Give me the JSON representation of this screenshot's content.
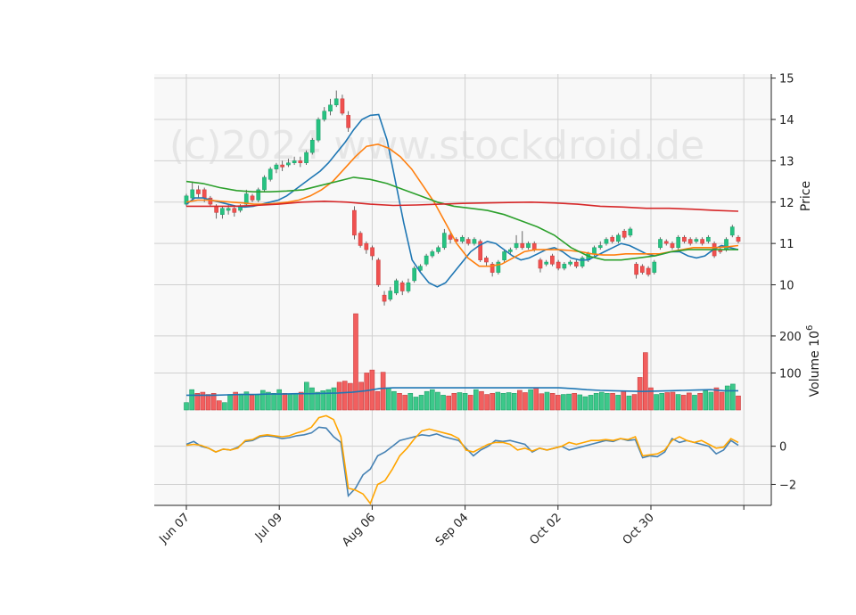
{
  "watermark": "(c)2024 www.stockdroid.de",
  "chart_data": {
    "type": "candlestick",
    "x_tick_labels": [
      "Jun 07",
      "Jul 09",
      "Aug 06",
      "Sep 04",
      "Oct 02",
      "Oct 30"
    ],
    "price_panel": {
      "ylabel": "Price",
      "yticks": [
        10,
        11,
        12,
        13,
        14,
        15
      ],
      "ylim": [
        9.3,
        15.1
      ],
      "candles": [
        {
          "o": 11.95,
          "c": 12.15,
          "h": 12.2,
          "l": 11.9
        },
        {
          "o": 12.1,
          "c": 12.3,
          "h": 12.5,
          "l": 12.05
        },
        {
          "o": 12.3,
          "c": 12.2,
          "h": 12.4,
          "l": 12.1
        },
        {
          "o": 12.3,
          "c": 12.1,
          "h": 12.35,
          "l": 12.0
        },
        {
          "o": 12.1,
          "c": 11.95,
          "h": 12.15,
          "l": 11.9
        },
        {
          "o": 11.9,
          "c": 11.75,
          "h": 11.95,
          "l": 11.6
        },
        {
          "o": 11.7,
          "c": 11.85,
          "h": 11.9,
          "l": 11.6
        },
        {
          "o": 11.8,
          "c": 11.85,
          "h": 11.95,
          "l": 11.7
        },
        {
          "o": 11.85,
          "c": 11.75,
          "h": 11.9,
          "l": 11.65
        },
        {
          "o": 11.8,
          "c": 11.9,
          "h": 11.95,
          "l": 11.75
        },
        {
          "o": 11.95,
          "c": 12.2,
          "h": 12.3,
          "l": 11.9
        },
        {
          "o": 12.15,
          "c": 12.05,
          "h": 12.2,
          "l": 12.0
        },
        {
          "o": 12.05,
          "c": 12.3,
          "h": 12.35,
          "l": 12.0
        },
        {
          "o": 12.3,
          "c": 12.6,
          "h": 12.65,
          "l": 12.25
        },
        {
          "o": 12.55,
          "c": 12.8,
          "h": 12.85,
          "l": 12.5
        },
        {
          "o": 12.8,
          "c": 12.9,
          "h": 12.95,
          "l": 12.7
        },
        {
          "o": 12.9,
          "c": 12.85,
          "h": 13.0,
          "l": 12.75
        },
        {
          "o": 12.9,
          "c": 12.95,
          "h": 13.05,
          "l": 12.85
        },
        {
          "o": 12.95,
          "c": 13.0,
          "h": 13.1,
          "l": 12.9
        },
        {
          "o": 13.0,
          "c": 12.95,
          "h": 13.1,
          "l": 12.85
        },
        {
          "o": 12.95,
          "c": 13.2,
          "h": 13.25,
          "l": 12.9
        },
        {
          "o": 13.2,
          "c": 13.5,
          "h": 13.55,
          "l": 13.15
        },
        {
          "o": 13.5,
          "c": 14.0,
          "h": 14.05,
          "l": 13.45
        },
        {
          "o": 14.0,
          "c": 14.2,
          "h": 14.3,
          "l": 13.95
        },
        {
          "o": 14.2,
          "c": 14.35,
          "h": 14.5,
          "l": 14.1
        },
        {
          "o": 14.35,
          "c": 14.5,
          "h": 14.7,
          "l": 14.3
        },
        {
          "o": 14.5,
          "c": 14.15,
          "h": 14.6,
          "l": 14.1
        },
        {
          "o": 14.1,
          "c": 13.8,
          "h": 14.2,
          "l": 13.7
        },
        {
          "o": 11.8,
          "c": 11.2,
          "h": 11.9,
          "l": 11.1
        },
        {
          "o": 11.25,
          "c": 10.95,
          "h": 11.3,
          "l": 10.9
        },
        {
          "o": 11.0,
          "c": 10.85,
          "h": 11.05,
          "l": 10.75
        },
        {
          "o": 10.9,
          "c": 10.7,
          "h": 10.95,
          "l": 10.6
        },
        {
          "o": 10.6,
          "c": 10.0,
          "h": 10.65,
          "l": 9.95
        },
        {
          "o": 9.75,
          "c": 9.6,
          "h": 9.85,
          "l": 9.5
        },
        {
          "o": 9.65,
          "c": 9.85,
          "h": 9.95,
          "l": 9.6
        },
        {
          "o": 9.8,
          "c": 10.1,
          "h": 10.15,
          "l": 9.75
        },
        {
          "o": 10.05,
          "c": 9.85,
          "h": 10.1,
          "l": 9.75
        },
        {
          "o": 9.85,
          "c": 10.05,
          "h": 10.15,
          "l": 9.8
        },
        {
          "o": 10.1,
          "c": 10.4,
          "h": 10.45,
          "l": 10.05
        },
        {
          "o": 10.35,
          "c": 10.45,
          "h": 10.5,
          "l": 10.3
        },
        {
          "o": 10.5,
          "c": 10.7,
          "h": 10.75,
          "l": 10.45
        },
        {
          "o": 10.7,
          "c": 10.8,
          "h": 10.85,
          "l": 10.65
        },
        {
          "o": 10.8,
          "c": 10.9,
          "h": 10.95,
          "l": 10.75
        },
        {
          "o": 10.9,
          "c": 11.25,
          "h": 11.35,
          "l": 10.85
        },
        {
          "o": 11.2,
          "c": 11.1,
          "h": 11.25,
          "l": 11.0
        },
        {
          "o": 11.1,
          "c": 11.05,
          "h": 11.15,
          "l": 11.0
        },
        {
          "o": 11.05,
          "c": 11.15,
          "h": 11.2,
          "l": 11.0
        },
        {
          "o": 11.1,
          "c": 11.0,
          "h": 11.15,
          "l": 10.95
        },
        {
          "o": 11.0,
          "c": 11.1,
          "h": 11.15,
          "l": 10.95
        },
        {
          "o": 11.05,
          "c": 10.6,
          "h": 11.1,
          "l": 10.55
        },
        {
          "o": 10.65,
          "c": 10.55,
          "h": 10.7,
          "l": 10.45
        },
        {
          "o": 10.5,
          "c": 10.3,
          "h": 10.55,
          "l": 10.2
        },
        {
          "o": 10.3,
          "c": 10.55,
          "h": 10.6,
          "l": 10.25
        },
        {
          "o": 10.6,
          "c": 10.8,
          "h": 10.85,
          "l": 10.55
        },
        {
          "o": 10.8,
          "c": 10.85,
          "h": 10.9,
          "l": 10.75
        },
        {
          "o": 10.9,
          "c": 11.0,
          "h": 11.2,
          "l": 10.85
        },
        {
          "o": 11.0,
          "c": 10.9,
          "h": 11.3,
          "l": 10.85
        },
        {
          "o": 10.9,
          "c": 11.0,
          "h": 11.05,
          "l": 10.85
        },
        {
          "o": 11.0,
          "c": 10.85,
          "h": 11.05,
          "l": 10.8
        },
        {
          "o": 10.6,
          "c": 10.4,
          "h": 10.65,
          "l": 10.3
        },
        {
          "o": 10.5,
          "c": 10.55,
          "h": 10.6,
          "l": 10.45
        },
        {
          "o": 10.7,
          "c": 10.5,
          "h": 10.75,
          "l": 10.45
        },
        {
          "o": 10.55,
          "c": 10.4,
          "h": 10.6,
          "l": 10.35
        },
        {
          "o": 10.4,
          "c": 10.5,
          "h": 10.55,
          "l": 10.35
        },
        {
          "o": 10.5,
          "c": 10.55,
          "h": 10.6,
          "l": 10.45
        },
        {
          "o": 10.55,
          "c": 10.45,
          "h": 10.6,
          "l": 10.4
        },
        {
          "o": 10.45,
          "c": 10.65,
          "h": 10.7,
          "l": 10.4
        },
        {
          "o": 10.6,
          "c": 10.75,
          "h": 10.8,
          "l": 10.55
        },
        {
          "o": 10.75,
          "c": 10.9,
          "h": 10.95,
          "l": 10.7
        },
        {
          "o": 10.9,
          "c": 10.95,
          "h": 11.05,
          "l": 10.85
        },
        {
          "o": 11.0,
          "c": 11.1,
          "h": 11.15,
          "l": 10.95
        },
        {
          "o": 11.15,
          "c": 11.05,
          "h": 11.2,
          "l": 11.0
        },
        {
          "o": 11.05,
          "c": 11.2,
          "h": 11.25,
          "l": 11.0
        },
        {
          "o": 11.3,
          "c": 11.15,
          "h": 11.35,
          "l": 11.1
        },
        {
          "o": 11.2,
          "c": 11.35,
          "h": 11.4,
          "l": 11.15
        },
        {
          "o": 10.5,
          "c": 10.25,
          "h": 10.55,
          "l": 10.15
        },
        {
          "o": 10.45,
          "c": 10.3,
          "h": 10.5,
          "l": 10.25
        },
        {
          "o": 10.4,
          "c": 10.25,
          "h": 10.45,
          "l": 10.2
        },
        {
          "o": 10.3,
          "c": 10.55,
          "h": 10.6,
          "l": 10.25
        },
        {
          "o": 10.9,
          "c": 11.1,
          "h": 11.15,
          "l": 10.85
        },
        {
          "o": 11.05,
          "c": 11.0,
          "h": 11.1,
          "l": 10.95
        },
        {
          "o": 11.0,
          "c": 10.9,
          "h": 11.05,
          "l": 10.85
        },
        {
          "o": 10.9,
          "c": 11.15,
          "h": 11.2,
          "l": 10.85
        },
        {
          "o": 11.15,
          "c": 11.05,
          "h": 11.2,
          "l": 11.0
        },
        {
          "o": 11.1,
          "c": 11.0,
          "h": 11.15,
          "l": 10.95
        },
        {
          "o": 11.05,
          "c": 11.1,
          "h": 11.15,
          "l": 11.0
        },
        {
          "o": 11.1,
          "c": 11.0,
          "h": 11.15,
          "l": 10.95
        },
        {
          "o": 11.05,
          "c": 11.15,
          "h": 11.2,
          "l": 11.0
        },
        {
          "o": 11.0,
          "c": 10.7,
          "h": 11.05,
          "l": 10.65
        },
        {
          "o": 10.85,
          "c": 10.8,
          "h": 10.9,
          "l": 10.75
        },
        {
          "o": 10.85,
          "c": 11.1,
          "h": 11.15,
          "l": 10.8
        },
        {
          "o": 11.2,
          "c": 11.4,
          "h": 11.45,
          "l": 11.15
        },
        {
          "o": 11.15,
          "c": 11.05,
          "h": 11.2,
          "l": 11.0
        }
      ],
      "lines": [
        {
          "color": "#1f77b4",
          "values": [
            11.95,
            12.1,
            12.1,
            12.05,
            12.0,
            11.95,
            11.9,
            11.88,
            11.9,
            11.95,
            12.0,
            12.05,
            12.15,
            12.3,
            12.45,
            12.6,
            12.75,
            12.95,
            13.2,
            13.45,
            13.75,
            14.0,
            14.1,
            14.12,
            13.5,
            12.5,
            11.5,
            10.6,
            10.3,
            10.05,
            9.95,
            10.05,
            10.3,
            10.55,
            10.8,
            10.95,
            11.05,
            11.0,
            10.85,
            10.7,
            10.6,
            10.65,
            10.75,
            10.85,
            10.9,
            10.8,
            10.65,
            10.6,
            10.6,
            10.7,
            10.8,
            10.9,
            11.0,
            10.95,
            10.85,
            10.75,
            10.7,
            10.75,
            10.8,
            10.8,
            10.7,
            10.65,
            10.7,
            10.85,
            10.95,
            10.9,
            10.85
          ]
        },
        {
          "color": "#ff7f0e",
          "values": [
            12.0,
            12.05,
            12.05,
            12.02,
            12.0,
            11.98,
            11.95,
            11.95,
            11.97,
            12.0,
            12.05,
            12.15,
            12.3,
            12.5,
            12.8,
            13.1,
            13.35,
            13.4,
            13.3,
            13.1,
            12.8,
            12.4,
            12.0,
            11.5,
            11.0,
            10.65,
            10.45,
            10.45,
            10.5,
            10.65,
            10.8,
            10.85,
            10.85,
            10.85,
            10.83,
            10.8,
            10.75,
            10.72,
            10.72,
            10.75,
            10.75,
            10.75,
            10.75,
            10.8,
            10.85,
            10.9,
            10.9,
            10.9,
            10.92,
            10.95
          ]
        },
        {
          "color": "#2ca02c",
          "values": [
            12.5,
            12.45,
            12.35,
            12.28,
            12.25,
            12.25,
            12.27,
            12.3,
            12.4,
            12.5,
            12.6,
            12.55,
            12.45,
            12.3,
            12.15,
            12.0,
            11.9,
            11.85,
            11.8,
            11.7,
            11.55,
            11.4,
            11.2,
            10.9,
            10.7,
            10.6,
            10.6,
            10.65,
            10.7,
            10.8,
            10.85,
            10.85,
            10.85,
            10.85
          ]
        },
        {
          "color": "#d62728",
          "values": [
            11.9,
            11.9,
            11.9,
            11.92,
            11.95,
            12.0,
            12.02,
            12.0,
            11.95,
            11.92,
            11.93,
            11.95,
            11.97,
            11.98,
            11.99,
            12.0,
            11.98,
            11.95,
            11.9,
            11.88,
            11.85,
            11.85,
            11.83,
            11.8,
            11.78
          ]
        }
      ]
    },
    "volume_panel": {
      "ylabel": "Volume  10^6",
      "yticks": [
        100,
        200
      ],
      "ylim": [
        0,
        260
      ],
      "bars": [
        20,
        55,
        45,
        48,
        42,
        45,
        25,
        20,
        42,
        48,
        43,
        49,
        40,
        42,
        53,
        48,
        45,
        55,
        45,
        43,
        44,
        48,
        75,
        60,
        48,
        52,
        55,
        60,
        75,
        78,
        72,
        265,
        75,
        100,
        108,
        50,
        102,
        60,
        50,
        45,
        40,
        45,
        35,
        40,
        50,
        55,
        48,
        40,
        38,
        45,
        47,
        45,
        40,
        55,
        50,
        42,
        45,
        48,
        45,
        47,
        45,
        53,
        47,
        55,
        60,
        44,
        48,
        45,
        40,
        42,
        43,
        45,
        41,
        36,
        40,
        45,
        48,
        45,
        45,
        40,
        50,
        38,
        42,
        88,
        155,
        60,
        42,
        45,
        47,
        48,
        42,
        40,
        46,
        40,
        45,
        52,
        48,
        60,
        48,
        65,
        70,
        38
      ],
      "ma": [
        40,
        40,
        40,
        41,
        42,
        42,
        43,
        43,
        44,
        44,
        45,
        46,
        48,
        52,
        58,
        60,
        60,
        60,
        60,
        60,
        60,
        60,
        60,
        60,
        60,
        60,
        60,
        60,
        58,
        55,
        53,
        52,
        51,
        50,
        51,
        52,
        53,
        54,
        55,
        52,
        52
      ]
    },
    "indicator_panel": {
      "yticks": [
        0,
        -2
      ],
      "ylim": [
        -3.1,
        1.9
      ],
      "series": [
        {
          "color": "#4682b4",
          "values": [
            0.1,
            0.25,
            0.0,
            -0.1,
            -0.3,
            -0.15,
            -0.2,
            -0.05,
            0.25,
            0.3,
            0.5,
            0.55,
            0.5,
            0.4,
            0.45,
            0.55,
            0.6,
            0.7,
            1.0,
            0.95,
            0.5,
            0.2,
            -2.6,
            -2.2,
            -1.5,
            -1.2,
            -0.5,
            -0.3,
            0.0,
            0.3,
            0.4,
            0.5,
            0.6,
            0.55,
            0.65,
            0.5,
            0.4,
            0.3,
            -0.1,
            -0.5,
            -0.2,
            0.0,
            0.3,
            0.25,
            0.3,
            0.2,
            0.1,
            -0.3,
            -0.1,
            -0.2,
            -0.1,
            0.0,
            -0.2,
            -0.1,
            0.0,
            0.1,
            0.2,
            0.3,
            0.25,
            0.4,
            0.3,
            0.35,
            -0.6,
            -0.5,
            -0.55,
            -0.3,
            0.4,
            0.2,
            0.3,
            0.2,
            0.1,
            0.0,
            -0.4,
            -0.2,
            0.3,
            0.05
          ]
        },
        {
          "color": "#ffa500",
          "values": [
            0.05,
            0.1,
            0.05,
            -0.1,
            -0.3,
            -0.15,
            -0.2,
            -0.1,
            0.3,
            0.35,
            0.55,
            0.6,
            0.55,
            0.5,
            0.55,
            0.7,
            0.8,
            1.0,
            1.5,
            1.6,
            1.4,
            0.5,
            -2.2,
            -2.3,
            -2.5,
            -3.0,
            -2.0,
            -1.8,
            -1.2,
            -0.5,
            -0.1,
            0.4,
            0.8,
            0.9,
            0.8,
            0.7,
            0.6,
            0.4,
            -0.2,
            -0.3,
            -0.1,
            0.1,
            0.2,
            0.2,
            0.1,
            -0.2,
            -0.1,
            -0.25,
            -0.1,
            -0.2,
            -0.1,
            0.0,
            0.2,
            0.1,
            0.2,
            0.3,
            0.3,
            0.35,
            0.3,
            0.4,
            0.35,
            0.5,
            -0.5,
            -0.45,
            -0.4,
            -0.2,
            0.3,
            0.5,
            0.3,
            0.2,
            0.3,
            0.1,
            -0.1,
            -0.05,
            0.4,
            0.2
          ]
        }
      ]
    }
  }
}
